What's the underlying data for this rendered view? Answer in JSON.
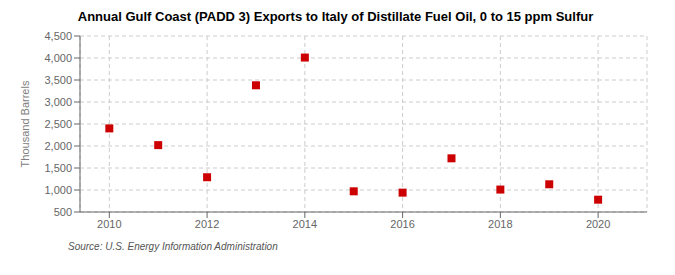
{
  "chart_data": {
    "type": "scatter",
    "title": "Annual Gulf Coast (PADD 3) Exports to Italy of Distillate Fuel Oil, 0 to 15 ppm Sulfur",
    "ylabel": "Thousand Barrels",
    "annotations": [
      "Source: U.S. Energy Information Administration"
    ],
    "x": [
      2010,
      2011,
      2012,
      2013,
      2014,
      2015,
      2016,
      2017,
      2018,
      2019,
      2020
    ],
    "values": [
      2400,
      2020,
      1290,
      3380,
      4010,
      970,
      940,
      1720,
      1010,
      1130,
      780
    ],
    "color": "#cc0000",
    "marker": "square",
    "xlim": [
      2009.4,
      2021.0
    ],
    "xticks": [
      2010,
      2012,
      2014,
      2016,
      2018,
      2020
    ],
    "ylim": [
      500,
      4500
    ],
    "yticks": [
      500,
      {
        "value": 1000,
        "label": "1,000"
      },
      {
        "value": 1500,
        "label": "1,500"
      },
      {
        "value": 2000,
        "label": "2,000"
      },
      {
        "value": 2500,
        "label": "2,500"
      },
      {
        "value": 3000,
        "label": "3,000"
      },
      {
        "value": 3500,
        "label": "3,500"
      },
      {
        "value": 4000,
        "label": "4,000"
      },
      {
        "value": 4500,
        "label": "4,500"
      }
    ],
    "grid": true
  }
}
